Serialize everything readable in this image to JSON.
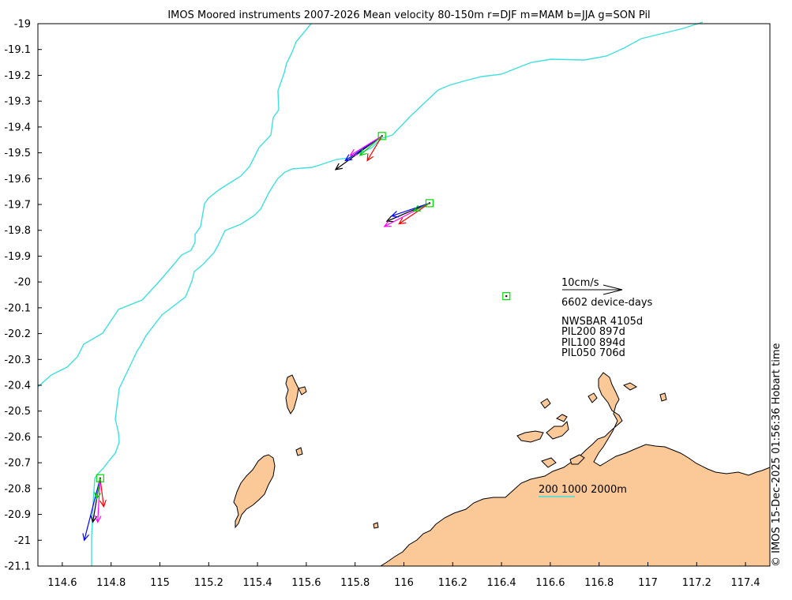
{
  "title": "IMOS Moored instruments 2007-2026 Mean velocity 80-150m r=DJF m=MAM b=JJA g=SON Pil",
  "timestamp_label": "© IMOS 15-Dec-2025 01:56:36 Hobart time",
  "axes": {
    "x_ticks": [
      "114.6",
      "114.8",
      "115",
      "115.2",
      "115.4",
      "115.6",
      "115.8",
      "116",
      "116.2",
      "116.4",
      "116.6",
      "116.8",
      "117",
      "117.2",
      "117.4"
    ],
    "y_ticks": [
      "-19",
      "-19.1",
      "-19.2",
      "-19.3",
      "-19.4",
      "-19.5",
      "-19.6",
      "-19.7",
      "-19.8",
      "-19.9",
      "-20",
      "-20.1",
      "-20.2",
      "-20.3",
      "-20.4",
      "-20.5",
      "-20.6",
      "-20.7",
      "-20.8",
      "-20.9",
      "-21",
      "-21.1"
    ],
    "lon_range": [
      114.5,
      117.5
    ],
    "lat_range": [
      -21.1,
      -19.0
    ]
  },
  "scale": {
    "label": "10cm/s",
    "device_days": "6602 device-days"
  },
  "station_counts": [
    "NWSBAR 4105d",
    "PIL200 897d",
    "PIL100 894d",
    "PIL050 706d"
  ],
  "isobath_label": "200 1000 2000m",
  "colors": {
    "land": "#fbc997",
    "isobath": "#40e0e0",
    "station_box": "#00dd00",
    "djf": "#ff0000",
    "mam": "#ff00ff",
    "jja": "#0000ff",
    "son": "#00cc00",
    "mean": "#000000"
  },
  "stations": [
    {
      "name": "NWSBAR",
      "lon": 114.755,
      "lat": -20.76
    },
    {
      "name": "PIL200",
      "lon": 115.91,
      "lat": -19.435
    },
    {
      "name": "PIL100",
      "lon": 116.105,
      "lat": -19.695
    },
    {
      "name": "PIL050",
      "lon": 116.42,
      "lat": -20.055
    }
  ],
  "vectors": [
    {
      "station": "PIL200",
      "season": "mean",
      "end": [
        115.72,
        -19.565
      ]
    },
    {
      "station": "PIL200",
      "season": "jja",
      "end": [
        115.76,
        -19.53
      ]
    },
    {
      "station": "PIL200",
      "season": "mam",
      "end": [
        115.78,
        -19.51
      ]
    },
    {
      "station": "PIL200",
      "season": "djf",
      "end": [
        115.85,
        -19.53
      ]
    },
    {
      "station": "PIL200",
      "season": "son",
      "end": [
        115.82,
        -19.51
      ]
    },
    {
      "station": "PIL100",
      "season": "mean",
      "end": [
        115.93,
        -19.765
      ]
    },
    {
      "station": "PIL100",
      "season": "jja",
      "end": [
        115.95,
        -19.745
      ]
    },
    {
      "station": "PIL100",
      "season": "mam",
      "end": [
        115.92,
        -19.785
      ]
    },
    {
      "station": "PIL100",
      "season": "djf",
      "end": [
        115.98,
        -19.775
      ]
    },
    {
      "station": "PIL100",
      "season": "son",
      "end": [
        116.04,
        -19.725
      ]
    },
    {
      "station": "NWSBAR",
      "season": "jja",
      "end": [
        114.69,
        -21.0
      ]
    },
    {
      "station": "NWSBAR",
      "season": "mean",
      "end": [
        114.725,
        -20.93
      ]
    },
    {
      "station": "NWSBAR",
      "season": "mam",
      "end": [
        114.745,
        -20.93
      ]
    },
    {
      "station": "NWSBAR",
      "season": "djf",
      "end": [
        114.77,
        -20.87
      ]
    },
    {
      "station": "NWSBAR",
      "season": "son",
      "end": [
        114.74,
        -20.84
      ]
    }
  ]
}
